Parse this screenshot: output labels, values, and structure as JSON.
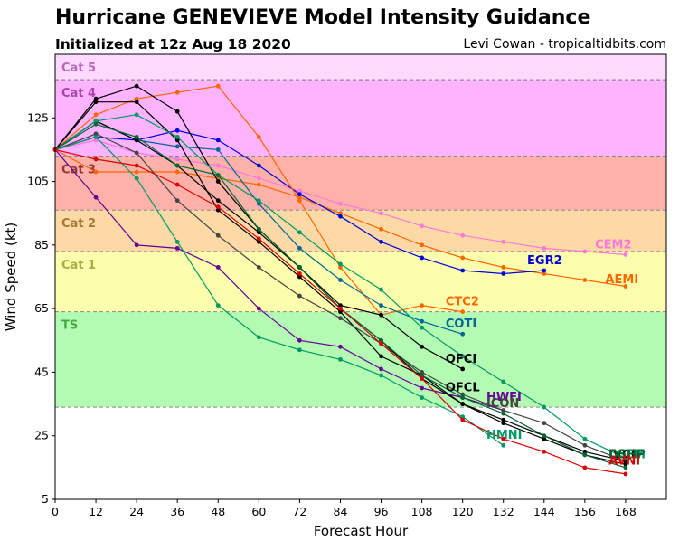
{
  "header": {
    "title": "Hurricane GENEVIEVE Model Intensity Guidance",
    "subtitle": "Initialized at 12z Aug 18 2020",
    "credit": "Levi Cowan - tropicaltidbits.com"
  },
  "chart_data": {
    "type": "line",
    "title": "Hurricane GENEVIEVE Model Intensity Guidance",
    "subtitle": "Initialized at 12z Aug 18 2020",
    "xlabel": "Forecast Hour",
    "ylabel": "Wind Speed (kt)",
    "xlim": [
      0,
      180
    ],
    "ylim": [
      5,
      145
    ],
    "xticks": [
      0,
      12,
      24,
      36,
      48,
      60,
      72,
      84,
      96,
      108,
      120,
      132,
      144,
      156,
      168
    ],
    "yticks": [
      5,
      25,
      45,
      65,
      85,
      105,
      125
    ],
    "grid": false,
    "intensity_bands": [
      {
        "label": "TS",
        "from": 34,
        "to": 64,
        "color": "#b3fbb3",
        "label_color": "#44aa44"
      },
      {
        "label": "Cat 1",
        "from": 64,
        "to": 83,
        "color": "#fdfdae",
        "label_color": "#aaaa44"
      },
      {
        "label": "Cat 2",
        "from": 83,
        "to": 96,
        "color": "#fdd9a6",
        "label_color": "#aa7733"
      },
      {
        "label": "Cat 3",
        "from": 96,
        "to": 113,
        "color": "#fdb1a9",
        "label_color": "#993333"
      },
      {
        "label": "Cat 4",
        "from": 113,
        "to": 137,
        "color": "#fdb3fd",
        "label_color": "#aa44aa"
      },
      {
        "label": "Cat 5",
        "from": 137,
        "to": 145,
        "color": "#fdd9fd",
        "label_color": "#bb66bb"
      }
    ],
    "series": [
      {
        "name": "CEM2",
        "color": "#ff77dd",
        "label_at": [
          159,
          84
        ],
        "x": [
          0,
          12,
          24,
          36,
          48,
          60,
          72,
          84,
          96,
          108,
          120,
          132,
          144,
          156,
          168
        ],
        "y": [
          115,
          118,
          114,
          112,
          110,
          106,
          102,
          98,
          95,
          91,
          88,
          86,
          84,
          83,
          82
        ]
      },
      {
        "name": "AEMI",
        "color": "#ff6600",
        "label_at": [
          162,
          73
        ],
        "x": [
          0,
          12,
          24,
          36,
          48,
          60,
          72,
          84,
          96,
          108,
          120,
          132,
          144,
          156,
          168
        ],
        "y": [
          115,
          108,
          108,
          108,
          106,
          104,
          100,
          95,
          90,
          85,
          81,
          78,
          76,
          74,
          72
        ]
      },
      {
        "name": "EGR2",
        "color": "#0000dd",
        "label_at": [
          139,
          79
        ],
        "x": [
          0,
          12,
          24,
          36,
          48,
          60,
          72,
          84,
          96,
          108,
          120,
          132,
          144
        ],
        "y": [
          115,
          119,
          118,
          121,
          118,
          110,
          101,
          94,
          86,
          81,
          77,
          76,
          77
        ]
      },
      {
        "name": "CTC2",
        "color": "#ff6600",
        "label_at": [
          115,
          66
        ],
        "x": [
          0,
          12,
          24,
          36,
          48,
          60,
          72,
          84,
          96,
          108,
          120
        ],
        "y": [
          115,
          126,
          131,
          133,
          135,
          119,
          99,
          78,
          63,
          66,
          64
        ]
      },
      {
        "name": "COTI",
        "color": "#006699",
        "label_at": [
          115,
          59
        ],
        "x": [
          0,
          12,
          24,
          36,
          48,
          60,
          72,
          84,
          96,
          108,
          120
        ],
        "y": [
          115,
          124,
          118,
          116,
          115,
          98,
          84,
          74,
          66,
          61,
          57
        ]
      },
      {
        "name": "OFCI",
        "color": "#000000",
        "label_at": [
          115,
          48
        ],
        "x": [
          0,
          12,
          24,
          36,
          48,
          60,
          72,
          84,
          96,
          108,
          120
        ],
        "y": [
          115,
          131,
          135,
          127,
          105,
          90,
          78,
          66,
          63,
          53,
          46
        ]
      },
      {
        "name": "OFCL",
        "color": "#000000",
        "label_at": [
          115,
          39
        ],
        "x": [
          0,
          12,
          24,
          36,
          48,
          60,
          72,
          84,
          96,
          108,
          120,
          132,
          144,
          156,
          168
        ],
        "y": [
          115,
          130,
          130,
          118,
          96,
          86,
          75,
          64,
          50,
          44,
          35,
          29,
          24,
          19,
          16
        ]
      },
      {
        "name": "HWFI",
        "color": "#660099",
        "label_at": [
          127,
          36
        ],
        "x": [
          0,
          12,
          24,
          36,
          48,
          60,
          72,
          84,
          96,
          108,
          120,
          132
        ],
        "y": [
          115,
          100,
          85,
          84,
          78,
          65,
          55,
          53,
          46,
          40,
          37,
          33
        ]
      },
      {
        "name": "ICON",
        "color": "#444444",
        "label_at": [
          127,
          34
        ],
        "x": [
          0,
          12,
          24,
          36,
          48,
          60,
          72,
          84,
          96,
          108,
          120,
          132,
          144,
          156,
          168
        ],
        "y": [
          115,
          120,
          114,
          99,
          88,
          78,
          69,
          62,
          54,
          45,
          38,
          33,
          29,
          22,
          17
        ]
      },
      {
        "name": "HMNI",
        "color": "#009966",
        "label_at": [
          127,
          24
        ],
        "x": [
          0,
          12,
          24,
          36,
          48,
          60,
          72,
          84,
          96,
          108,
          120,
          132
        ],
        "y": [
          115,
          119,
          106,
          86,
          66,
          56,
          52,
          49,
          44,
          37,
          31,
          22
        ]
      },
      {
        "name": "IVCN",
        "color": "#000000",
        "label_at": [
          163,
          18
        ],
        "x": [
          0,
          12,
          24,
          36,
          48,
          60,
          72,
          84,
          96,
          108,
          120,
          132,
          144,
          156,
          168
        ],
        "y": [
          115,
          124,
          118,
          110,
          99,
          89,
          78,
          65,
          55,
          43,
          35,
          30,
          25,
          20,
          17
        ]
      },
      {
        "name": "LGEM",
        "color": "#009966",
        "label_at": [
          163,
          18
        ],
        "x": [
          0,
          12,
          24,
          36,
          48,
          60,
          72,
          84,
          96,
          108,
          120,
          132,
          144,
          156,
          168
        ],
        "y": [
          115,
          124,
          126,
          119,
          107,
          99,
          89,
          79,
          71,
          59,
          50,
          42,
          34,
          24,
          18
        ]
      },
      {
        "name": "DSHP",
        "color": "#006633",
        "label_at": [
          163,
          18
        ],
        "x": [
          0,
          12,
          24,
          36,
          48,
          60,
          72,
          84,
          96,
          108,
          120,
          132,
          144,
          156,
          168
        ],
        "y": [
          115,
          123,
          119,
          110,
          107,
          90,
          78,
          65,
          55,
          44,
          37,
          32,
          25,
          19,
          15
        ]
      },
      {
        "name": "AVNI",
        "color": "#dd0000",
        "label_at": [
          163,
          16
        ],
        "x": [
          0,
          12,
          24,
          36,
          48,
          60,
          72,
          84,
          96,
          108,
          120,
          132,
          144,
          156,
          168
        ],
        "y": [
          115,
          112,
          110,
          104,
          97,
          87,
          76,
          65,
          54,
          43,
          30,
          24,
          20,
          15,
          13
        ]
      }
    ]
  }
}
